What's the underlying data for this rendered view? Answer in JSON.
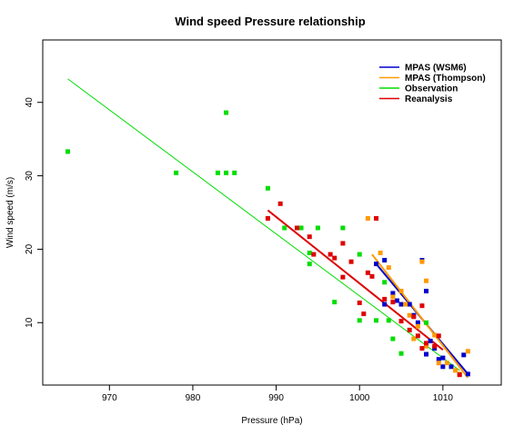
{
  "chart_data": {
    "type": "scatter",
    "title": "Wind speed Pressure relationship",
    "xlabel": "Pressure (hPa)",
    "ylabel": "Wind speed (m/s)",
    "xlim": [
      962,
      1017
    ],
    "ylim": [
      1.5,
      48.5
    ],
    "xticks": [
      970,
      980,
      990,
      1000,
      1010
    ],
    "yticks": [
      10,
      20,
      30,
      40
    ],
    "grid": false,
    "legend_position": "top-right",
    "series": [
      {
        "name": "MPAS (WSM6)",
        "color": "#0000cc",
        "points": [
          [
            1002,
            18
          ],
          [
            1003,
            18.5
          ],
          [
            1003,
            12.5
          ],
          [
            1004,
            14
          ],
          [
            1004.5,
            13
          ],
          [
            1005,
            12.5
          ],
          [
            1006,
            12.5
          ],
          [
            1006.5,
            11
          ],
          [
            1007,
            10
          ],
          [
            1007.5,
            18.5
          ],
          [
            1008,
            14.3
          ],
          [
            1008,
            5.7
          ],
          [
            1008.5,
            7.5
          ],
          [
            1009,
            6.5
          ],
          [
            1009.5,
            5
          ],
          [
            1010,
            5.2
          ],
          [
            1010,
            4
          ],
          [
            1011,
            4
          ],
          [
            1012.5,
            5.6
          ],
          [
            1013,
            3
          ]
        ],
        "fit": [
          [
            1002,
            18
          ],
          [
            1013,
            3
          ]
        ]
      },
      {
        "name": "MPAS (Thompson)",
        "color": "#ff9900",
        "points": [
          [
            1001,
            24.2
          ],
          [
            1002.5,
            19.5
          ],
          [
            1003.5,
            17.5
          ],
          [
            1004,
            13.5
          ],
          [
            1005,
            14.3
          ],
          [
            1005.5,
            12.5
          ],
          [
            1006,
            11
          ],
          [
            1006.5,
            7.8
          ],
          [
            1007,
            9.5
          ],
          [
            1007.5,
            18.3
          ],
          [
            1008,
            15.7
          ],
          [
            1008,
            6.8
          ],
          [
            1009,
            8.3
          ],
          [
            1009.5,
            4.5
          ],
          [
            1010.5,
            4.5
          ],
          [
            1011.5,
            3.5
          ],
          [
            1012,
            3
          ],
          [
            1013,
            6.1
          ]
        ],
        "fit": [
          [
            1001.5,
            19.3
          ],
          [
            1013,
            2.5
          ]
        ]
      },
      {
        "name": "Observation",
        "color": "#00dd00",
        "points": [
          [
            965,
            33.3
          ],
          [
            978,
            30.4
          ],
          [
            983,
            30.4
          ],
          [
            984,
            38.6
          ],
          [
            984,
            30.4
          ],
          [
            985,
            30.4
          ],
          [
            989,
            28.3
          ],
          [
            991,
            22.9
          ],
          [
            993,
            22.9
          ],
          [
            994,
            18
          ],
          [
            994,
            19.5
          ],
          [
            995,
            22.9
          ],
          [
            997,
            12.8
          ],
          [
            998,
            22.9
          ],
          [
            1000,
            19.3
          ],
          [
            1000,
            10.3
          ],
          [
            1002,
            10.3
          ],
          [
            1003,
            15.5
          ],
          [
            1003.5,
            10.3
          ],
          [
            1004,
            7.8
          ],
          [
            1005,
            5.8
          ],
          [
            1008,
            10
          ]
        ],
        "fit": [
          [
            965,
            43.2
          ],
          [
            1012,
            3.5
          ]
        ]
      },
      {
        "name": "Reanalysis",
        "color": "#dd0000",
        "points": [
          [
            989,
            24.2
          ],
          [
            990.5,
            26.2
          ],
          [
            992.5,
            22.9
          ],
          [
            994,
            21.7
          ],
          [
            994.5,
            19.3
          ],
          [
            996.5,
            19.3
          ],
          [
            997,
            18.8
          ],
          [
            998,
            20.8
          ],
          [
            998,
            16.2
          ],
          [
            999,
            18.3
          ],
          [
            1000,
            12.7
          ],
          [
            1000.5,
            11.2
          ],
          [
            1001,
            16.8
          ],
          [
            1001.5,
            16.3
          ],
          [
            1002,
            24.2
          ],
          [
            1003,
            13.2
          ],
          [
            1004,
            12.8
          ],
          [
            1005,
            10.2
          ],
          [
            1006,
            9
          ],
          [
            1006.5,
            10.8
          ],
          [
            1007,
            8.2
          ],
          [
            1007.5,
            12.3
          ],
          [
            1007.5,
            6.5
          ],
          [
            1008,
            7.2
          ],
          [
            1009,
            6.8
          ],
          [
            1009.5,
            8.2
          ],
          [
            1012,
            2.9
          ]
        ],
        "fit": [
          [
            989,
            25.3
          ],
          [
            1010,
            6.3
          ]
        ]
      }
    ]
  }
}
